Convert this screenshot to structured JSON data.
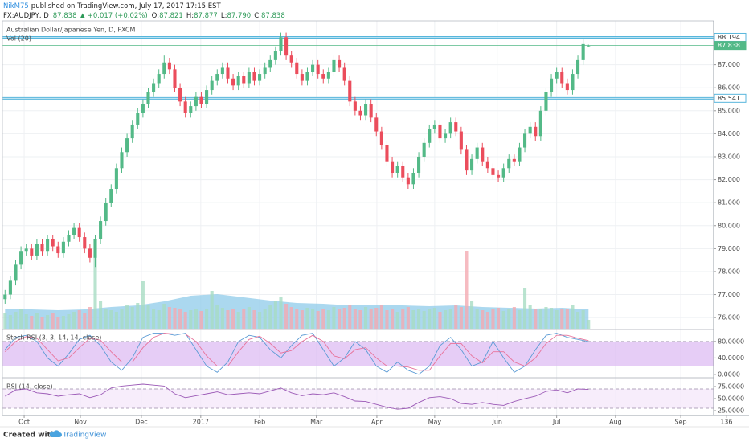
{
  "header": {
    "author": "NikM75",
    "published": "published on TradingView.com, July 17, 2017 17:15 EST",
    "symbol": "FX:AUDJPY, D",
    "last": "87.838",
    "change": "▲ +0.017 (+0.02%)",
    "ohlc": [
      {
        "key": "O:",
        "text": "87.821"
      },
      {
        "key": "H:",
        "text": "87.877"
      },
      {
        "key": "L:",
        "text": "87.790"
      },
      {
        "key": "C:",
        "text": "87.838"
      }
    ]
  },
  "footer": {
    "created": "Created with",
    "brand": "TradingView"
  },
  "chart_data": [
    {
      "type": "candlestick",
      "title": "Australian Dollar/Japanese Yen, D, FXCM",
      "volume_title": "Vol (20)",
      "x": [
        0,
        1,
        2,
        3,
        4,
        5,
        6,
        7,
        8,
        9,
        10,
        11,
        12,
        13,
        14,
        15,
        16,
        17,
        18,
        19,
        20,
        21,
        22,
        23,
        24,
        25,
        26,
        27,
        28,
        29,
        30,
        31,
        32,
        33,
        34,
        35,
        36,
        37,
        38,
        39,
        40,
        41,
        42,
        43,
        44,
        45,
        46,
        47,
        48,
        49,
        50,
        51,
        52,
        53,
        54,
        55,
        56,
        57,
        58,
        59,
        60,
        61,
        62,
        63,
        64,
        65,
        66,
        67,
        68,
        69,
        70,
        71,
        72,
        73,
        74,
        75,
        76,
        77,
        78,
        79,
        80,
        81,
        82,
        83,
        84,
        85,
        86,
        87,
        88,
        89,
        90,
        91,
        92,
        93,
        94,
        95,
        96,
        97,
        98,
        99,
        100,
        101,
        102,
        103,
        104,
        105,
        106,
        107,
        108,
        109,
        110
      ],
      "open": [
        76.8,
        77.0,
        77.6,
        78.3,
        78.9,
        79.0,
        78.7,
        79.2,
        78.9,
        79.4,
        79.1,
        78.8,
        79.3,
        79.6,
        79.9,
        79.5,
        79.0,
        78.6,
        79.4,
        80.2,
        81.0,
        81.6,
        82.5,
        83.2,
        83.8,
        84.4,
        84.9,
        85.3,
        85.8,
        86.2,
        86.6,
        87.1,
        86.8,
        86.0,
        85.4,
        84.9,
        85.2,
        85.6,
        85.3,
        85.9,
        86.3,
        86.6,
        86.9,
        86.4,
        86.1,
        86.5,
        86.2,
        86.7,
        86.3,
        86.6,
        86.9,
        87.2,
        87.6,
        88.2,
        87.4,
        87.1,
        86.6,
        86.3,
        86.7,
        87.0,
        86.6,
        86.4,
        86.7,
        87.2,
        86.9,
        86.3,
        85.4,
        85.0,
        84.8,
        85.3,
        84.7,
        84.1,
        83.5,
        82.8,
        82.3,
        82.6,
        82.1,
        81.8,
        82.3,
        83.0,
        83.6,
        84.2,
        84.4,
        83.8,
        84.0,
        84.5,
        84.1,
        83.3,
        82.4,
        82.9,
        83.4,
        82.8,
        82.5,
        82.2,
        82.1,
        82.5,
        82.9,
        82.8,
        83.4,
        84.0,
        84.3,
        83.9,
        85.0,
        85.8,
        86.4,
        86.7,
        86.2,
        85.9,
        86.6,
        87.2,
        87.821
      ],
      "high": [
        77.2,
        77.8,
        78.5,
        79.1,
        79.2,
        79.2,
        79.4,
        79.4,
        79.6,
        79.6,
        79.3,
        79.5,
        79.8,
        80.1,
        80.1,
        79.7,
        79.2,
        79.6,
        80.4,
        81.2,
        81.8,
        82.7,
        83.4,
        84.0,
        84.6,
        85.1,
        85.5,
        86.0,
        86.4,
        86.8,
        87.4,
        87.3,
        87.0,
        86.2,
        85.6,
        85.4,
        85.8,
        85.8,
        86.1,
        86.5,
        86.8,
        87.1,
        87.1,
        86.6,
        86.7,
        86.7,
        86.9,
        86.9,
        86.8,
        87.1,
        87.4,
        87.8,
        88.4,
        88.4,
        87.6,
        87.3,
        86.8,
        86.9,
        87.2,
        87.2,
        86.8,
        86.9,
        87.4,
        87.4,
        87.1,
        86.5,
        85.6,
        85.2,
        85.5,
        85.5,
        84.9,
        84.3,
        83.7,
        83.0,
        82.8,
        82.8,
        82.3,
        82.5,
        83.2,
        83.8,
        84.4,
        84.6,
        84.6,
        84.2,
        84.7,
        84.7,
        84.3,
        83.5,
        83.1,
        83.6,
        83.6,
        83.0,
        82.7,
        82.4,
        82.7,
        83.1,
        83.1,
        83.6,
        84.2,
        84.5,
        84.5,
        85.2,
        86.0,
        86.6,
        86.9,
        86.9,
        86.4,
        86.8,
        87.4,
        88.1,
        87.877
      ],
      "low": [
        76.6,
        76.8,
        77.4,
        78.1,
        78.7,
        78.5,
        78.5,
        78.7,
        78.7,
        78.9,
        78.6,
        78.6,
        79.1,
        79.4,
        79.3,
        78.8,
        78.4,
        78.2,
        79.2,
        80.0,
        80.8,
        81.4,
        82.3,
        83.0,
        83.6,
        84.2,
        84.7,
        85.1,
        85.6,
        86.0,
        86.4,
        86.6,
        85.8,
        85.2,
        84.7,
        84.7,
        85.0,
        85.1,
        85.1,
        85.7,
        86.1,
        86.4,
        86.2,
        85.9,
        85.9,
        86.0,
        86.0,
        86.1,
        86.1,
        86.4,
        86.7,
        87.0,
        87.4,
        87.2,
        86.9,
        86.4,
        86.1,
        86.1,
        86.5,
        86.4,
        86.2,
        86.2,
        86.5,
        86.7,
        86.1,
        85.2,
        84.8,
        84.6,
        84.6,
        84.5,
        83.9,
        83.3,
        82.6,
        82.1,
        82.1,
        81.9,
        81.6,
        81.6,
        82.1,
        82.8,
        83.4,
        84.0,
        83.6,
        83.6,
        83.8,
        83.9,
        83.1,
        82.2,
        82.2,
        82.7,
        82.6,
        82.3,
        82.0,
        81.9,
        81.9,
        82.3,
        82.6,
        82.6,
        83.2,
        83.8,
        83.7,
        83.7,
        84.8,
        85.6,
        86.2,
        86.0,
        85.7,
        85.7,
        86.4,
        87.0,
        87.79
      ],
      "close": [
        77.0,
        77.6,
        78.3,
        78.9,
        79.0,
        78.7,
        79.2,
        78.9,
        79.4,
        79.1,
        78.8,
        79.3,
        79.6,
        79.9,
        79.5,
        79.0,
        78.6,
        79.4,
        80.2,
        81.0,
        81.6,
        82.5,
        83.2,
        83.8,
        84.4,
        84.9,
        85.3,
        85.8,
        86.2,
        86.6,
        87.1,
        86.8,
        86.0,
        85.4,
        84.9,
        85.2,
        85.6,
        85.3,
        85.9,
        86.3,
        86.6,
        86.9,
        86.4,
        86.1,
        86.5,
        86.2,
        86.7,
        86.3,
        86.6,
        86.9,
        87.2,
        87.6,
        88.2,
        87.4,
        87.1,
        86.6,
        86.3,
        86.7,
        87.0,
        86.6,
        86.4,
        86.7,
        87.2,
        86.9,
        86.3,
        85.4,
        85.0,
        84.8,
        85.3,
        84.7,
        84.1,
        83.5,
        82.8,
        82.3,
        82.6,
        82.1,
        81.8,
        82.3,
        83.0,
        83.6,
        84.2,
        84.4,
        83.8,
        84.0,
        84.5,
        84.1,
        83.3,
        82.4,
        82.9,
        83.4,
        82.8,
        82.5,
        82.2,
        82.1,
        82.5,
        82.9,
        82.8,
        83.4,
        84.0,
        84.3,
        83.9,
        85.0,
        85.8,
        86.4,
        86.7,
        86.2,
        85.9,
        86.6,
        87.2,
        87.9,
        87.838
      ],
      "volume": [
        20,
        18,
        22,
        25,
        19,
        17,
        21,
        16,
        18,
        20,
        15,
        17,
        19,
        22,
        24,
        20,
        28,
        90,
        35,
        26,
        24,
        22,
        25,
        30,
        28,
        33,
        60,
        30,
        26,
        24,
        32,
        28,
        27,
        25,
        22,
        24,
        26,
        23,
        25,
        48,
        30,
        27,
        24,
        26,
        22,
        25,
        28,
        24,
        22,
        26,
        30,
        35,
        40,
        32,
        28,
        26,
        24,
        27,
        25,
        23,
        26,
        24,
        28,
        25,
        27,
        30,
        26,
        24,
        28,
        25,
        27,
        30,
        24,
        26,
        22,
        25,
        28,
        24,
        26,
        23,
        25,
        27,
        22,
        24,
        26,
        30,
        28,
        98,
        35,
        26,
        24,
        22,
        25,
        27,
        23,
        26,
        28,
        24,
        52,
        30,
        26,
        25,
        28,
        27,
        24,
        26,
        25,
        30,
        22,
        24,
        12
      ],
      "volume_ma_x": [
        0,
        5,
        10,
        15,
        20,
        25,
        30,
        35,
        40,
        45,
        50,
        55,
        60,
        65,
        70,
        75,
        80,
        85,
        90,
        95,
        100,
        105,
        110
      ],
      "volume_ma": [
        26,
        25,
        24,
        25,
        28,
        30,
        35,
        42,
        44,
        40,
        36,
        33,
        32,
        30,
        31,
        30,
        29,
        30,
        28,
        27,
        26,
        27,
        25
      ],
      "vlim": [
        0,
        100
      ],
      "up_color": "#53b987",
      "down_color": "#eb4d5c",
      "volume_up_color": "#a8dcc3",
      "volume_down_color": "#f4aab1",
      "volume_ma_color": "#8fcbea",
      "xlim": [
        -0.5,
        133.6
      ],
      "xticks": [
        {
          "value": 3.6,
          "label": "Oct"
        },
        {
          "value": 14.2,
          "label": "Nov"
        },
        {
          "value": 25.7,
          "label": "Dec"
        },
        {
          "value": 36.9,
          "label": "2017"
        },
        {
          "value": 48,
          "label": "Feb"
        },
        {
          "value": 58.7,
          "label": "Mar"
        },
        {
          "value": 70.1,
          "label": "Apr"
        },
        {
          "value": 81,
          "label": "May"
        },
        {
          "value": 92.8,
          "label": "Jun"
        },
        {
          "value": 104,
          "label": "Jul"
        },
        {
          "value": 115.1,
          "label": "Aug"
        },
        {
          "value": 127.4,
          "label": "Sep"
        },
        136
      ],
      "ylim": [
        75.48,
        88.91
      ],
      "yticks": [
        {
          "value": 76,
          "label": "76.000"
        },
        {
          "value": 77,
          "label": "77.000"
        },
        {
          "value": 78,
          "label": "78.000"
        },
        {
          "value": 79,
          "label": "79.000"
        },
        {
          "value": 80,
          "label": "80.000"
        },
        {
          "value": 81,
          "label": "81.000"
        },
        {
          "value": 82,
          "label": "82.000"
        },
        {
          "value": 83,
          "label": "83.000"
        },
        {
          "value": 84,
          "label": "84.000"
        },
        {
          "value": 85,
          "label": "85.000"
        },
        {
          "value": 86,
          "label": "86.000"
        },
        {
          "value": 87,
          "label": "87.000"
        }
      ],
      "grid": true,
      "hlines": [
        {
          "value": 88.194,
          "color": "#57b6dc"
        },
        {
          "value": 85.541,
          "color": "#57b6dc"
        },
        {
          "value": 87.838,
          "color": "#53b987"
        }
      ]
    },
    {
      "type": "line",
      "title": "Stoch RSI (3, 3, 14, 14, close)",
      "x": [
        0,
        2,
        4,
        6,
        8,
        10,
        12,
        14,
        16,
        18,
        20,
        22,
        24,
        26,
        28,
        30,
        32,
        34,
        36,
        38,
        40,
        42,
        44,
        46,
        48,
        50,
        52,
        54,
        56,
        58,
        60,
        62,
        64,
        66,
        68,
        70,
        72,
        74,
        76,
        78,
        80,
        82,
        84,
        86,
        88,
        90,
        92,
        94,
        96,
        98,
        100,
        102,
        104,
        106,
        108,
        110
      ],
      "series": [
        {
          "color": "#5b9bd5",
          "values": [
            60,
            90,
            95,
            80,
            40,
            20,
            50,
            85,
            95,
            70,
            30,
            10,
            40,
            90,
            100,
            100,
            95,
            100,
            60,
            20,
            5,
            30,
            80,
            95,
            90,
            60,
            40,
            70,
            95,
            100,
            60,
            20,
            40,
            80,
            60,
            20,
            5,
            30,
            10,
            0,
            20,
            70,
            90,
            60,
            20,
            30,
            80,
            40,
            5,
            20,
            60,
            95,
            100,
            90,
            85,
            80
          ]
        },
        {
          "color": "#e8739b",
          "values": [
            55,
            80,
            92,
            88,
            60,
            33,
            40,
            65,
            88,
            83,
            55,
            30,
            30,
            65,
            90,
            100,
            98,
            98,
            80,
            45,
            20,
            20,
            55,
            85,
            93,
            75,
            52,
            58,
            80,
            95,
            80,
            45,
            38,
            60,
            65,
            40,
            20,
            20,
            18,
            10,
            10,
            45,
            75,
            75,
            45,
            28,
            55,
            55,
            30,
            20,
            40,
            75,
            95,
            95,
            88,
            82
          ]
        }
      ],
      "ylim": [
        -8,
        109
      ],
      "yticks": [
        {
          "value": 80,
          "label": "80.0000"
        },
        {
          "value": 40,
          "label": "40.0000"
        },
        {
          "value": 0,
          "label": "0.0000"
        }
      ],
      "band": [
        20,
        80
      ],
      "band_color": "#dcb8f2"
    },
    {
      "type": "line",
      "title": "RSI (14, close)",
      "x": [
        0,
        2,
        4,
        6,
        8,
        10,
        12,
        14,
        16,
        18,
        20,
        22,
        24,
        26,
        28,
        30,
        32,
        34,
        36,
        38,
        40,
        42,
        44,
        46,
        48,
        50,
        52,
        54,
        56,
        58,
        60,
        62,
        64,
        66,
        68,
        70,
        72,
        74,
        76,
        78,
        80,
        82,
        84,
        86,
        88,
        90,
        92,
        94,
        96,
        98,
        100,
        102,
        104,
        106,
        108,
        110
      ],
      "values": [
        55,
        68,
        70,
        62,
        60,
        55,
        58,
        60,
        52,
        58,
        72,
        76,
        78,
        80,
        78,
        76,
        60,
        52,
        56,
        60,
        64,
        58,
        60,
        62,
        60,
        66,
        72,
        62,
        56,
        60,
        58,
        62,
        54,
        45,
        44,
        38,
        32,
        28,
        30,
        42,
        52,
        54,
        50,
        40,
        38,
        42,
        38,
        36,
        44,
        50,
        55,
        65,
        68,
        62,
        70,
        69
      ],
      "color": "#9b59b6",
      "ylim": [
        15,
        93.3
      ],
      "yticks": [
        {
          "value": 75,
          "label": "75.0000"
        },
        {
          "value": 50,
          "label": "50.0000"
        },
        {
          "value": 25,
          "label": "25.0000"
        }
      ],
      "band": [
        30,
        70
      ],
      "band_color": "#f4e6f9"
    }
  ]
}
